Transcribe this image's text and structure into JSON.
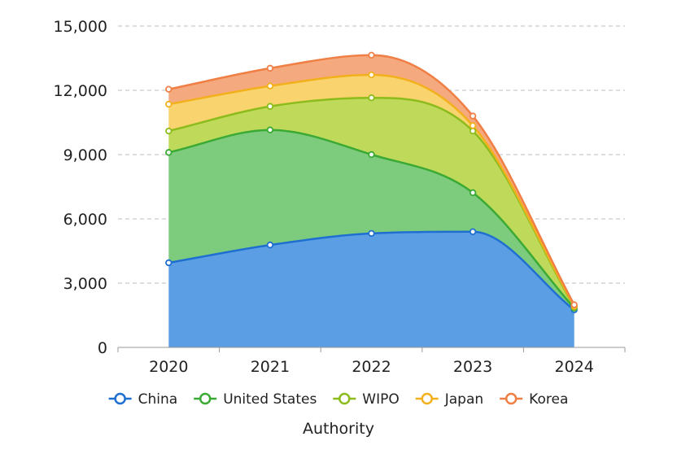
{
  "chart_data": {
    "type": "area",
    "stacked": true,
    "categories": [
      "2020",
      "2021",
      "2022",
      "2023",
      "2024"
    ],
    "series": [
      {
        "name": "China",
        "values": [
          3950,
          4780,
          5320,
          5400,
          1750
        ],
        "color": "#1f6fd1",
        "fill": "#5b9ee3"
      },
      {
        "name": "United States",
        "values": [
          5150,
          5370,
          3680,
          1820,
          80
        ],
        "color": "#3aaa35",
        "fill": "#7dcc7d"
      },
      {
        "name": "WIPO",
        "values": [
          1000,
          1100,
          2650,
          2880,
          50
        ],
        "color": "#8cbc1c",
        "fill": "#bfd95a"
      },
      {
        "name": "Japan",
        "values": [
          1250,
          950,
          1070,
          250,
          40
        ],
        "color": "#f2b11c",
        "fill": "#f8d36e"
      },
      {
        "name": "Korea",
        "values": [
          700,
          830,
          920,
          450,
          70
        ],
        "color": "#f07f45",
        "fill": "#f4a97e"
      }
    ],
    "ylim": [
      0,
      15000
    ],
    "yticks": [
      "0",
      "3,000",
      "6,000",
      "9,000",
      "12,000",
      "15,000"
    ],
    "ytick_values": [
      0,
      3000,
      6000,
      9000,
      12000,
      15000
    ],
    "xlabel": "Authority",
    "ylabel": "",
    "grid": true,
    "legend_position": "bottom"
  }
}
